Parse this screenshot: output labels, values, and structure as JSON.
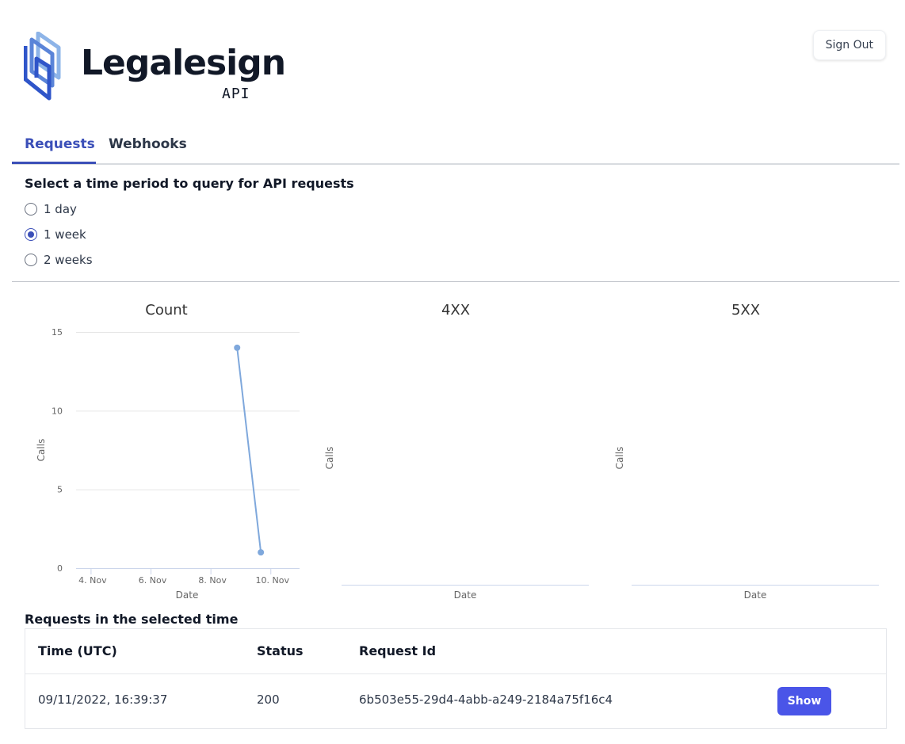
{
  "header": {
    "logo_text": "Legalesign",
    "logo_sub": "API",
    "signout_label": "Sign Out"
  },
  "tabs": [
    {
      "label": "Requests",
      "active": true
    },
    {
      "label": "Webhooks",
      "active": false
    }
  ],
  "period": {
    "title": "Select a time period to query for API requests",
    "options": [
      {
        "label": "1 day",
        "checked": false
      },
      {
        "label": "1 week",
        "checked": true
      },
      {
        "label": "2 weeks",
        "checked": false
      }
    ]
  },
  "colors": {
    "accent": "#3b4fb8",
    "button": "#4a55e8",
    "series": "#7fa8dc"
  },
  "chart_data": [
    {
      "type": "line",
      "title": "Count",
      "xlabel": "Date",
      "ylabel": "Calls",
      "x_ticks": [
        "4. Nov",
        "6. Nov",
        "8. Nov",
        "10. Nov"
      ],
      "y_ticks": [
        "0",
        "5",
        "10",
        "15"
      ],
      "ylim": [
        0,
        15
      ],
      "grid": true,
      "series": [
        {
          "x": [
            "2022-11-08T21:00",
            "2022-11-09T16:00"
          ],
          "values": [
            14,
            1
          ]
        }
      ]
    },
    {
      "type": "line",
      "title": "4XX",
      "xlabel": "Date",
      "ylabel": "Calls",
      "series": []
    },
    {
      "type": "line",
      "title": "5XX",
      "xlabel": "Date",
      "ylabel": "Calls",
      "series": []
    }
  ],
  "requests": {
    "title": "Requests in the selected time",
    "columns": [
      "Time (UTC)",
      "Status",
      "Request Id"
    ],
    "rows": [
      {
        "time": "09/11/2022, 16:39:37",
        "status": "200",
        "request_id": "6b503e55-29d4-4abb-a249-2184a75f16c4",
        "action": "Show"
      }
    ]
  }
}
